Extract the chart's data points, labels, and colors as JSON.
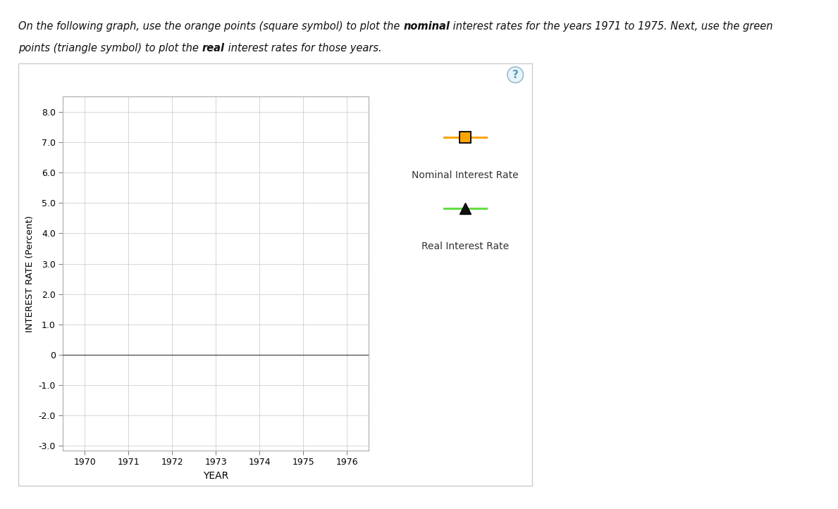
{
  "line1_parts": [
    {
      "text": "On the following graph, use the orange points (square symbol) to plot the ",
      "bold": false
    },
    {
      "text": "nominal",
      "bold": true
    },
    {
      "text": " interest rates for the years 1971 to 1975. Next, use the green",
      "bold": false
    }
  ],
  "line2_parts": [
    {
      "text": "points (triangle symbol) to plot the ",
      "bold": false
    },
    {
      "text": "real",
      "bold": true
    },
    {
      "text": " interest rates for those years.",
      "bold": false
    }
  ],
  "xlabel": "YEAR",
  "ylabel": "INTEREST RATE (Percent)",
  "xlim": [
    1969.5,
    1976.5
  ],
  "ylim": [
    -3.0,
    8.5
  ],
  "xticks": [
    1970,
    1971,
    1972,
    1973,
    1974,
    1975,
    1976
  ],
  "yticks": [
    -3.0,
    -2.0,
    -1.0,
    0,
    1.0,
    2.0,
    3.0,
    4.0,
    5.0,
    6.0,
    7.0,
    8.0
  ],
  "ytick_labels": [
    "-3.0",
    "-2.0",
    "-1.0",
    "0",
    "1.0",
    "2.0",
    "3.0",
    "4.0",
    "5.0",
    "6.0",
    "7.0",
    "8.0"
  ],
  "nominal_color": "#FFA500",
  "real_color": "#66DD44",
  "legend_nominal_label": "Nominal Interest Rate",
  "legend_real_label": "Real Interest Rate",
  "background_color": "#FFFFFF",
  "grid_color": "#D0D0D0",
  "marker_edge_color": "#000000",
  "nominal_marker": "s",
  "real_marker": "^",
  "outer_box_color": "#CCCCCC",
  "qmark_bg": "#E8F4FA",
  "qmark_edge": "#9BBCCC",
  "qmark_color": "#5599BB",
  "text_color": "#111111",
  "legend_text_color": "#333333"
}
